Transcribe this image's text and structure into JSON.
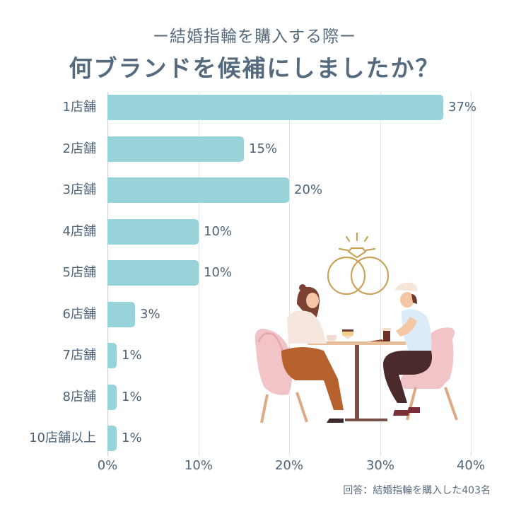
{
  "header": {
    "subtitle": "ー結婚指輪を購入する際ー",
    "title": "何ブランドを候補にしましたか？"
  },
  "note": "回答：結婚指輪を購入した403名",
  "colors": {
    "bar": "#97d3d9",
    "text": "#4f6378",
    "title": "#566a7e",
    "grid": "#dfe3e8",
    "ring_gold": "#c9a35a"
  },
  "illustration": {
    "subject": "couple sitting at a cafe table with wedding rings icon above"
  },
  "chart_data": {
    "type": "bar",
    "orientation": "horizontal",
    "title": "何ブランドを候補にしましたか？",
    "subtitle": "ー結婚指輪を購入する際ー",
    "categories": [
      "1店舗",
      "2店舗",
      "3店舗",
      "4店舗",
      "5店舗",
      "6店舗",
      "7店舗",
      "8店舗",
      "10店舗以上"
    ],
    "values": [
      37,
      15,
      20,
      10,
      10,
      3,
      1,
      1,
      1
    ],
    "labels": [
      "37%",
      "15%",
      "20%",
      "10%",
      "10%",
      "3%",
      "1%",
      "1%",
      "1%"
    ],
    "xlabel": "",
    "ylabel": "",
    "xlim": [
      0,
      40
    ],
    "xticks": [
      "0%",
      "10%",
      "20%",
      "30%",
      "40%"
    ],
    "grid": true,
    "legend": "none",
    "annotation": "回答：結婚指輪を購入した403名"
  }
}
